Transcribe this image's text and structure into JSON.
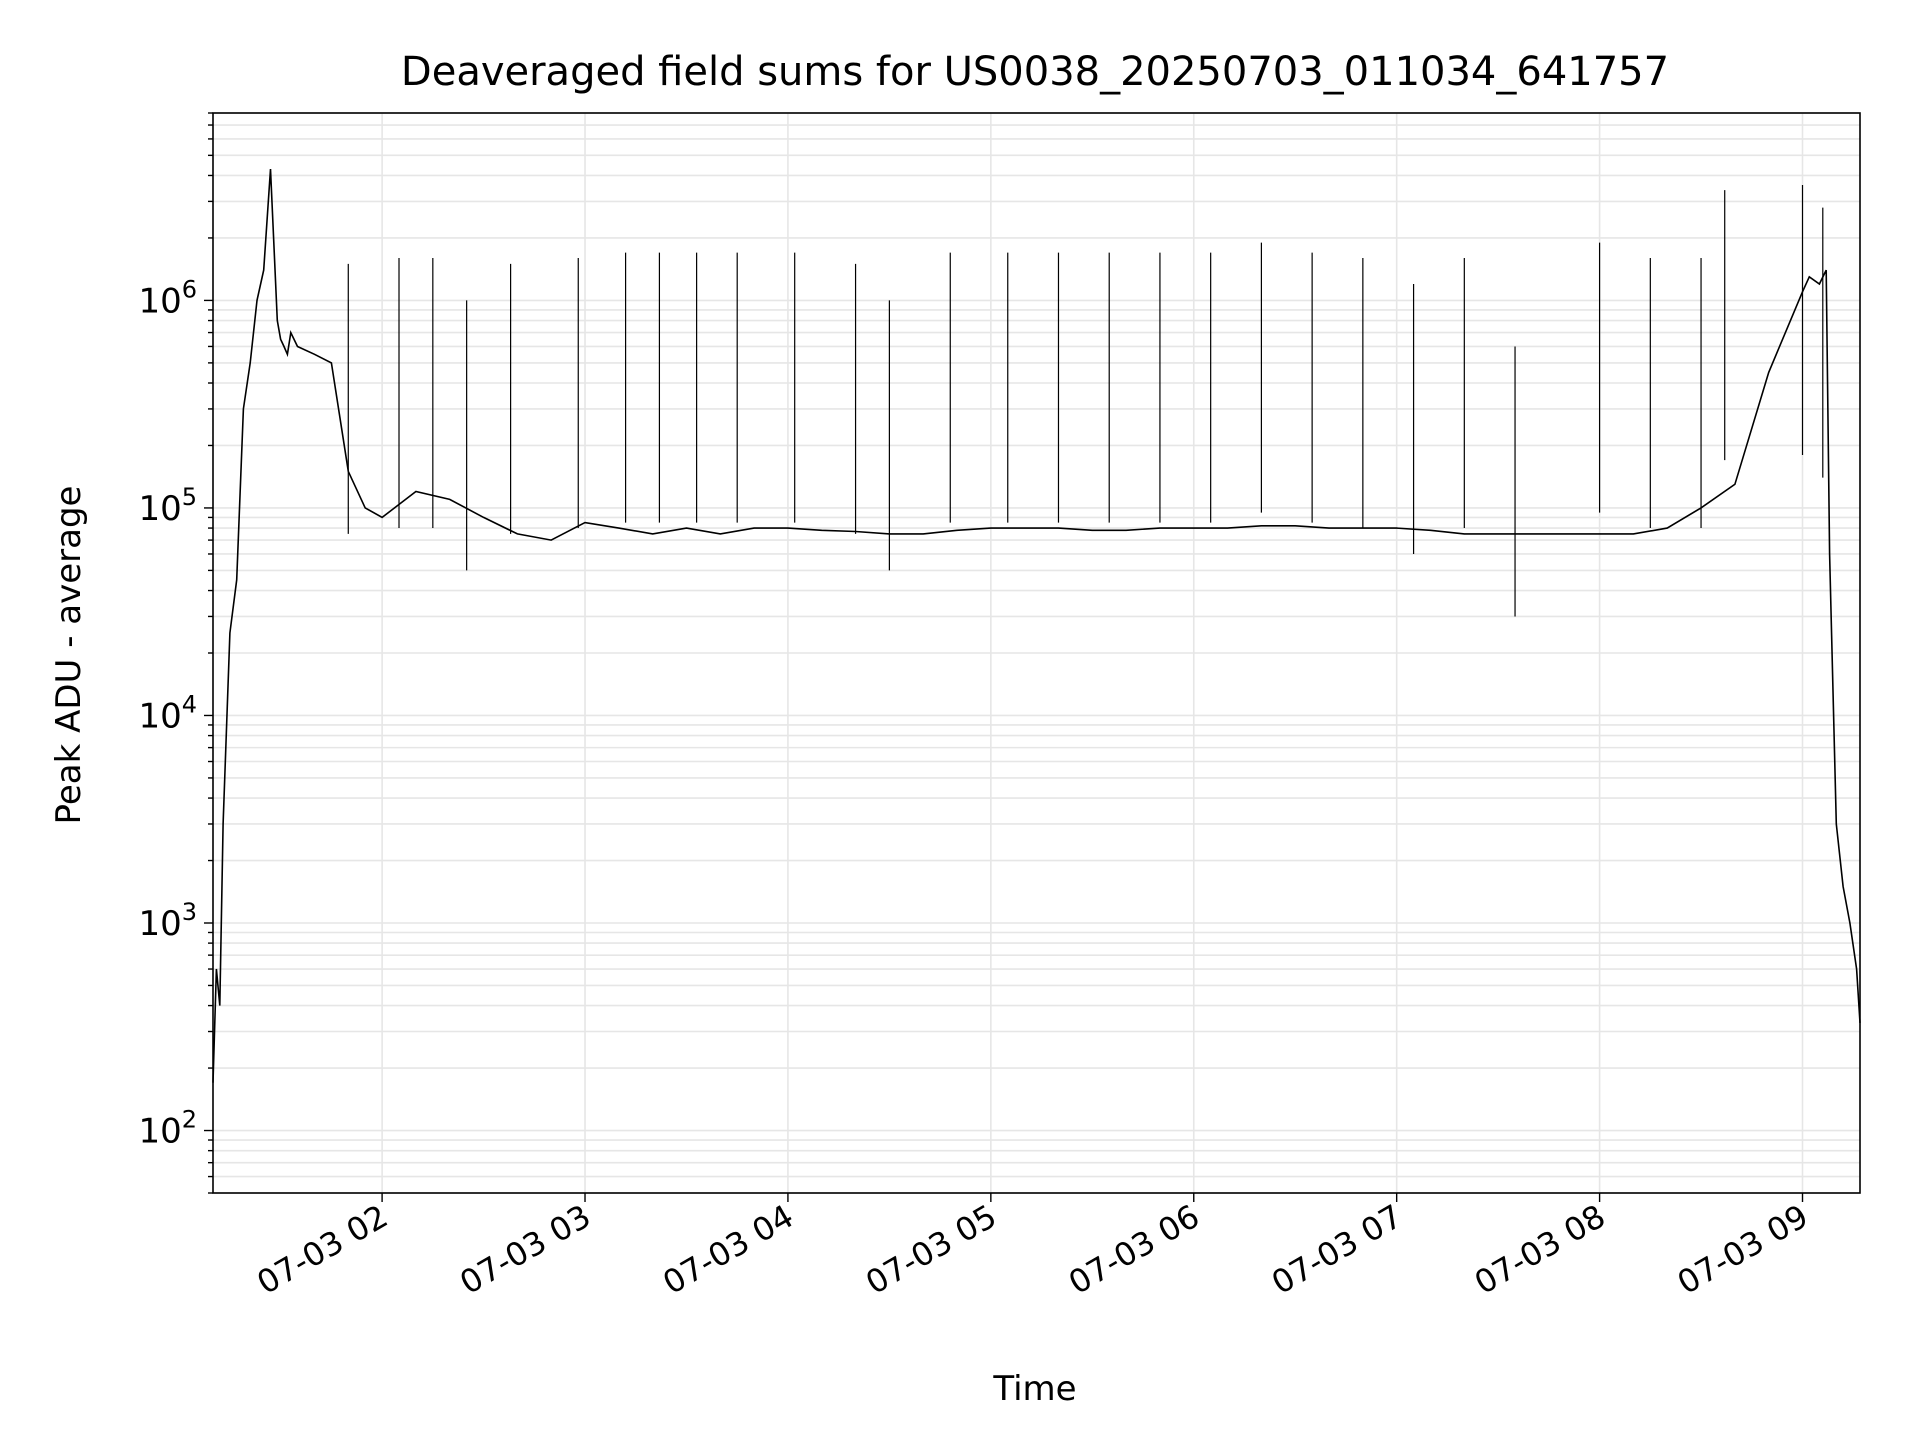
{
  "chart_data": {
    "type": "line",
    "title": "Deaveraged field sums for US0038_20250703_011034_641757",
    "xlabel": "Time",
    "ylabel": "Peak ADU - average",
    "y_scale": "log",
    "ylim": [
      50,
      8000000
    ],
    "xlim": [
      "2025-07-03 01:10",
      "2025-07-03 09:17"
    ],
    "grid": true,
    "line_color": "#000000",
    "grid_color": "#e6e6e6",
    "x_ticks": [
      {
        "label": "07-03 02",
        "value": "2025-07-03 02:00"
      },
      {
        "label": "07-03 03",
        "value": "2025-07-03 03:00"
      },
      {
        "label": "07-03 04",
        "value": "2025-07-03 04:00"
      },
      {
        "label": "07-03 05",
        "value": "2025-07-03 05:00"
      },
      {
        "label": "07-03 06",
        "value": "2025-07-03 06:00"
      },
      {
        "label": "07-03 07",
        "value": "2025-07-03 07:00"
      },
      {
        "label": "07-03 08",
        "value": "2025-07-03 08:00"
      },
      {
        "label": "07-03 09",
        "value": "2025-07-03 09:00"
      }
    ],
    "y_ticks": [
      {
        "base": "10",
        "exp": "2",
        "value": 100
      },
      {
        "base": "10",
        "exp": "3",
        "value": 1000
      },
      {
        "base": "10",
        "exp": "4",
        "value": 10000
      },
      {
        "base": "10",
        "exp": "5",
        "value": 100000
      },
      {
        "base": "10",
        "exp": "6",
        "value": 1000000
      }
    ],
    "series": [
      {
        "x": [
          "2025-07-03 01:10",
          "2025-07-03 01:11",
          "2025-07-03 01:12",
          "2025-07-03 01:13",
          "2025-07-03 01:15",
          "2025-07-03 01:17",
          "2025-07-03 01:19",
          "2025-07-03 01:21",
          "2025-07-03 01:23",
          "2025-07-03 01:25",
          "2025-07-03 01:27",
          "2025-07-03 01:29",
          "2025-07-03 01:30",
          "2025-07-03 01:31",
          "2025-07-03 01:32",
          "2025-07-03 01:33",
          "2025-07-03 01:35",
          "2025-07-03 01:40",
          "2025-07-03 01:45",
          "2025-07-03 01:50",
          "2025-07-03 01:55",
          "2025-07-03 02:00",
          "2025-07-03 02:10",
          "2025-07-03 02:20",
          "2025-07-03 02:30",
          "2025-07-03 02:40",
          "2025-07-03 02:50",
          "2025-07-03 03:00",
          "2025-07-03 03:10",
          "2025-07-03 03:20",
          "2025-07-03 03:30",
          "2025-07-03 03:40",
          "2025-07-03 03:50",
          "2025-07-03 04:00",
          "2025-07-03 04:10",
          "2025-07-03 04:20",
          "2025-07-03 04:30",
          "2025-07-03 04:40",
          "2025-07-03 04:50",
          "2025-07-03 05:00",
          "2025-07-03 05:10",
          "2025-07-03 05:20",
          "2025-07-03 05:30",
          "2025-07-03 05:40",
          "2025-07-03 05:50",
          "2025-07-03 06:00",
          "2025-07-03 06:10",
          "2025-07-03 06:20",
          "2025-07-03 06:30",
          "2025-07-03 06:40",
          "2025-07-03 06:50",
          "2025-07-03 07:00",
          "2025-07-03 07:10",
          "2025-07-03 07:20",
          "2025-07-03 07:30",
          "2025-07-03 07:40",
          "2025-07-03 07:50",
          "2025-07-03 08:00",
          "2025-07-03 08:10",
          "2025-07-03 08:20",
          "2025-07-03 08:30",
          "2025-07-03 08:40",
          "2025-07-03 08:50",
          "2025-07-03 09:00",
          "2025-07-03 09:02",
          "2025-07-03 09:05",
          "2025-07-03 09:07",
          "2025-07-03 09:08",
          "2025-07-03 09:10",
          "2025-07-03 09:12",
          "2025-07-03 09:14",
          "2025-07-03 09:16",
          "2025-07-03 09:17"
        ],
        "y": [
          170,
          600,
          400,
          3000,
          25000,
          45000,
          300000,
          500000,
          1000000,
          1400000,
          4300000,
          800000,
          650000,
          600000,
          550000,
          700000,
          600000,
          550000,
          500000,
          150000,
          100000,
          90000,
          120000,
          110000,
          90000,
          75000,
          70000,
          85000,
          80000,
          75000,
          80000,
          75000,
          80000,
          80000,
          78000,
          77000,
          75000,
          75000,
          78000,
          80000,
          80000,
          80000,
          78000,
          78000,
          80000,
          80000,
          80000,
          82000,
          82000,
          80000,
          80000,
          80000,
          78000,
          75000,
          75000,
          75000,
          75000,
          75000,
          75000,
          80000,
          100000,
          130000,
          450000,
          1100000,
          1300000,
          1200000,
          1400000,
          60000,
          3000,
          1500,
          1000,
          600,
          330
        ],
        "spikes": [
          {
            "x": "2025-07-03 01:50",
            "y": 1500000
          },
          {
            "x": "2025-07-03 02:05",
            "y": 1600000
          },
          {
            "x": "2025-07-03 02:15",
            "y": 1600000
          },
          {
            "x": "2025-07-03 02:25",
            "y": 1000000
          },
          {
            "x": "2025-07-03 02:38",
            "y": 1500000
          },
          {
            "x": "2025-07-03 02:58",
            "y": 1600000
          },
          {
            "x": "2025-07-03 03:12",
            "y": 1700000
          },
          {
            "x": "2025-07-03 03:22",
            "y": 1700000
          },
          {
            "x": "2025-07-03 03:33",
            "y": 1700000
          },
          {
            "x": "2025-07-03 03:45",
            "y": 1700000
          },
          {
            "x": "2025-07-03 04:02",
            "y": 1700000
          },
          {
            "x": "2025-07-03 04:20",
            "y": 1500000
          },
          {
            "x": "2025-07-03 04:30",
            "y": 1000000
          },
          {
            "x": "2025-07-03 04:48",
            "y": 1700000
          },
          {
            "x": "2025-07-03 05:05",
            "y": 1700000
          },
          {
            "x": "2025-07-03 05:20",
            "y": 1700000
          },
          {
            "x": "2025-07-03 05:35",
            "y": 1700000
          },
          {
            "x": "2025-07-03 05:50",
            "y": 1700000
          },
          {
            "x": "2025-07-03 06:05",
            "y": 1700000
          },
          {
            "x": "2025-07-03 06:20",
            "y": 1900000
          },
          {
            "x": "2025-07-03 06:35",
            "y": 1700000
          },
          {
            "x": "2025-07-03 06:50",
            "y": 1600000
          },
          {
            "x": "2025-07-03 07:05",
            "y": 1200000
          },
          {
            "x": "2025-07-03 07:20",
            "y": 1600000
          },
          {
            "x": "2025-07-03 07:35",
            "y": 600000
          },
          {
            "x": "2025-07-03 08:00",
            "y": 1900000
          },
          {
            "x": "2025-07-03 08:15",
            "y": 1600000
          },
          {
            "x": "2025-07-03 08:30",
            "y": 1600000
          },
          {
            "x": "2025-07-03 08:37",
            "y": 3400000
          },
          {
            "x": "2025-07-03 09:00",
            "y": 3600000
          },
          {
            "x": "2025-07-03 09:06",
            "y": 2800000
          }
        ]
      }
    ]
  }
}
